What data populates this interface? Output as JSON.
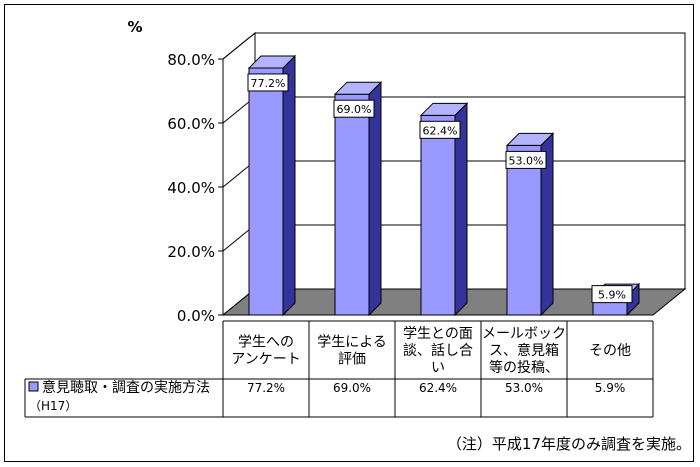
{
  "chart_data": {
    "type": "bar",
    "unit_label": "%",
    "categories": [
      [
        "学生への",
        "アンケート"
      ],
      [
        "学生による",
        "評価"
      ],
      [
        "学生との面",
        "談、話し合",
        "い"
      ],
      [
        "メールボック",
        "ス、意見箱",
        "等の投稿、"
      ],
      [
        "その他"
      ]
    ],
    "series": [
      {
        "name": "意見聴取・調査の実施方法",
        "name_sub": "（H17）",
        "values": [
          77.2,
          69.0,
          62.4,
          53.0,
          5.9
        ],
        "labels": [
          "77.2%",
          "69.0%",
          "62.4%",
          "53.0%",
          "5.9%"
        ],
        "table_values": [
          "77.2%",
          "69.0%",
          "62.4%",
          "53.0%",
          "5.9%"
        ]
      }
    ],
    "y_ticks": [
      "0.0%",
      "20.0%",
      "40.0%",
      "60.0%",
      "80.0%"
    ],
    "ylim": [
      0,
      80
    ],
    "grid": true,
    "colors": {
      "bar_front": "#9999ff",
      "bar_side": "#333399",
      "bar_top": "#b3b3ff",
      "floor": "#808080",
      "legend_key": "#9999ff"
    }
  },
  "note": "（注）平成17年度のみ調査を実施。"
}
